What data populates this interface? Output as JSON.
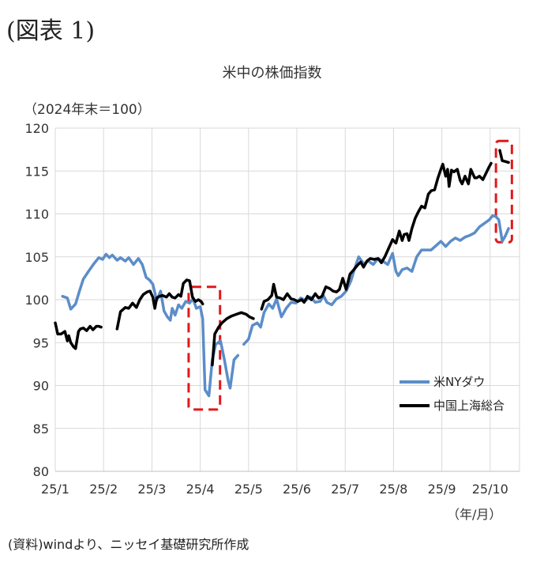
{
  "figure_label": "(図表 1)",
  "source_note": "(資料)windより、ニッセイ基礎研究所作成",
  "colors": {
    "us": "#5b8dc9",
    "cn": "#000000",
    "highlight": "#e0191b",
    "grid": "#d9d9d9"
  },
  "chart_data": {
    "type": "line",
    "title": "米中の株価指数",
    "ylabel": "（2024年末＝100）",
    "xlabel": "（年/月）",
    "ylim": [
      80,
      120
    ],
    "yticks": [
      80,
      85,
      90,
      95,
      100,
      105,
      110,
      115,
      120
    ],
    "xlim": [
      0,
      9.45
    ],
    "xtick_labels": [
      "25/1",
      "25/2",
      "25/3",
      "25/4",
      "25/5",
      "25/6",
      "25/7",
      "25/8",
      "25/9",
      "25/10"
    ],
    "grid": true,
    "legend": "right",
    "series": [
      {
        "name": "米NYダウ",
        "points": [
          [
            0.02,
            100.3
          ],
          [
            0.15,
            100.4
          ],
          [
            0.25,
            100.2
          ],
          [
            0.32,
            98.9
          ],
          [
            0.42,
            99.5
          ],
          [
            0.5,
            101.0
          ],
          [
            0.58,
            102.4
          ],
          [
            0.7,
            103.4
          ],
          [
            0.8,
            104.2
          ],
          [
            0.9,
            104.9
          ],
          [
            0.98,
            104.7
          ],
          [
            1.05,
            105.3
          ],
          [
            1.12,
            104.9
          ],
          [
            1.18,
            105.2
          ],
          [
            1.28,
            104.6
          ],
          [
            1.35,
            104.9
          ],
          [
            1.45,
            104.5
          ],
          [
            1.52,
            104.9
          ],
          [
            1.62,
            104.1
          ],
          [
            1.72,
            104.8
          ],
          [
            1.8,
            104.1
          ],
          [
            1.88,
            102.6
          ],
          [
            1.95,
            102.3
          ],
          [
            2.02,
            101.8
          ],
          [
            2.1,
            99.9
          ],
          [
            2.18,
            101.0
          ],
          [
            2.25,
            98.7
          ],
          [
            2.32,
            98.0
          ],
          [
            2.38,
            97.6
          ],
          [
            2.42,
            99.0
          ],
          [
            2.48,
            98.2
          ],
          [
            2.55,
            99.4
          ],
          [
            2.62,
            99.0
          ],
          [
            2.7,
            99.8
          ],
          [
            2.78,
            99.6
          ],
          [
            2.85,
            100.1
          ],
          [
            2.92,
            99.0
          ],
          [
            3.0,
            99.2
          ],
          [
            3.05,
            97.8
          ],
          [
            3.1,
            89.5
          ],
          [
            3.18,
            88.8
          ],
          [
            3.25,
            93.0
          ],
          [
            3.32,
            94.8
          ],
          [
            3.42,
            95.2
          ],
          [
            3.5,
            93.0
          ],
          [
            3.58,
            90.5
          ],
          [
            3.62,
            89.7
          ],
          [
            3.7,
            93.0
          ],
          [
            3.78,
            93.5
          ],
          [
            3.9,
            94.8
          ],
          [
            4.0,
            95.4
          ],
          [
            4.08,
            97.0
          ],
          [
            4.18,
            97.3
          ],
          [
            4.25,
            96.8
          ],
          [
            4.32,
            98.5
          ],
          [
            4.42,
            99.5
          ],
          [
            4.5,
            99.0
          ],
          [
            4.58,
            100.1
          ],
          [
            4.68,
            98.0
          ],
          [
            4.78,
            99.0
          ],
          [
            4.88,
            99.7
          ],
          [
            4.98,
            99.6
          ],
          [
            5.08,
            100.2
          ],
          [
            5.18,
            99.9
          ],
          [
            5.28,
            100.3
          ],
          [
            5.38,
            99.7
          ],
          [
            5.48,
            99.8
          ],
          [
            5.55,
            100.5
          ],
          [
            5.62,
            99.7
          ],
          [
            5.72,
            99.4
          ],
          [
            5.82,
            100.1
          ],
          [
            5.92,
            100.4
          ],
          [
            6.02,
            101.0
          ],
          [
            6.12,
            102.2
          ],
          [
            6.2,
            103.7
          ],
          [
            6.28,
            105.0
          ],
          [
            6.38,
            104.2
          ],
          [
            6.48,
            104.5
          ],
          [
            6.58,
            104.1
          ],
          [
            6.68,
            104.8
          ],
          [
            6.78,
            104.5
          ],
          [
            6.88,
            104.1
          ],
          [
            6.98,
            105.4
          ],
          [
            7.05,
            103.3
          ],
          [
            7.1,
            102.8
          ],
          [
            7.18,
            103.5
          ],
          [
            7.28,
            103.7
          ],
          [
            7.38,
            103.3
          ],
          [
            7.48,
            105.0
          ],
          [
            7.58,
            105.8
          ],
          [
            7.68,
            105.8
          ],
          [
            7.78,
            105.8
          ],
          [
            7.88,
            106.3
          ],
          [
            7.98,
            106.8
          ],
          [
            8.08,
            106.2
          ],
          [
            8.18,
            106.8
          ],
          [
            8.28,
            107.2
          ],
          [
            8.38,
            106.9
          ],
          [
            8.48,
            107.3
          ],
          [
            8.58,
            107.5
          ],
          [
            8.68,
            107.8
          ],
          [
            8.78,
            108.5
          ],
          [
            8.88,
            108.9
          ],
          [
            8.98,
            109.3
          ],
          [
            9.05,
            109.8
          ],
          [
            9.12,
            109.7
          ],
          [
            9.18,
            109.3
          ],
          [
            9.25,
            106.8
          ],
          [
            9.32,
            107.5
          ],
          [
            9.38,
            108.3
          ]
        ]
      },
      {
        "name": "中国上海総合",
        "points": [
          [
            0.0,
            97.3
          ],
          [
            0.05,
            96.0
          ],
          [
            0.12,
            96.0
          ],
          [
            0.2,
            96.3
          ],
          [
            0.25,
            95.2
          ],
          [
            0.28,
            95.8
          ],
          [
            0.32,
            95.0
          ],
          [
            0.38,
            94.5
          ],
          [
            0.42,
            94.3
          ],
          [
            0.48,
            96.3
          ],
          [
            0.52,
            96.6
          ],
          [
            0.58,
            96.7
          ],
          [
            0.65,
            96.4
          ],
          [
            0.72,
            96.9
          ],
          [
            0.78,
            96.5
          ],
          [
            0.85,
            96.9
          ],
          [
            0.9,
            96.9
          ],
          [
            0.95,
            96.8
          ],
          [
            1.28,
            96.6
          ],
          [
            1.35,
            98.6
          ],
          [
            1.45,
            99.1
          ],
          [
            1.52,
            99.0
          ],
          [
            1.6,
            99.6
          ],
          [
            1.68,
            99.1
          ],
          [
            1.75,
            100.0
          ],
          [
            1.82,
            100.6
          ],
          [
            1.9,
            100.9
          ],
          [
            1.96,
            101.0
          ],
          [
            2.02,
            100.3
          ],
          [
            2.06,
            99.0
          ],
          [
            2.1,
            100.2
          ],
          [
            2.16,
            100.4
          ],
          [
            2.22,
            100.5
          ],
          [
            2.3,
            100.3
          ],
          [
            2.36,
            100.7
          ],
          [
            2.42,
            100.3
          ],
          [
            2.48,
            100.2
          ],
          [
            2.55,
            100.6
          ],
          [
            2.6,
            100.4
          ],
          [
            2.65,
            101.9
          ],
          [
            2.72,
            102.3
          ],
          [
            2.78,
            102.2
          ],
          [
            2.84,
            100.3
          ],
          [
            2.9,
            99.8
          ],
          [
            2.96,
            100.0
          ],
          [
            3.02,
            99.8
          ],
          [
            3.05,
            99.5
          ],
          [
            3.25,
            92.4
          ],
          [
            3.3,
            96.0
          ],
          [
            3.38,
            96.8
          ],
          [
            3.45,
            97.3
          ],
          [
            3.55,
            97.8
          ],
          [
            3.65,
            98.1
          ],
          [
            3.75,
            98.3
          ],
          [
            3.85,
            98.5
          ],
          [
            3.95,
            98.3
          ],
          [
            4.02,
            98.0
          ],
          [
            4.1,
            97.8
          ],
          [
            4.27,
            98.9
          ],
          [
            4.32,
            99.8
          ],
          [
            4.4,
            100.0
          ],
          [
            4.48,
            100.5
          ],
          [
            4.52,
            101.8
          ],
          [
            4.58,
            100.3
          ],
          [
            4.65,
            100.2
          ],
          [
            4.72,
            100.0
          ],
          [
            4.8,
            100.7
          ],
          [
            4.88,
            100.1
          ],
          [
            4.95,
            100.0
          ],
          [
            5.02,
            99.8
          ],
          [
            5.1,
            100.0
          ],
          [
            5.15,
            99.7
          ],
          [
            5.22,
            100.4
          ],
          [
            5.3,
            100.0
          ],
          [
            5.38,
            100.7
          ],
          [
            5.45,
            100.2
          ],
          [
            5.52,
            100.4
          ],
          [
            5.6,
            101.5
          ],
          [
            5.68,
            101.3
          ],
          [
            5.75,
            101.0
          ],
          [
            5.82,
            100.9
          ],
          [
            5.88,
            101.2
          ],
          [
            5.95,
            102.5
          ],
          [
            6.02,
            101.2
          ],
          [
            6.1,
            103.0
          ],
          [
            6.18,
            103.5
          ],
          [
            6.25,
            104.0
          ],
          [
            6.32,
            104.4
          ],
          [
            6.38,
            103.8
          ],
          [
            6.45,
            104.5
          ],
          [
            6.52,
            104.8
          ],
          [
            6.6,
            104.7
          ],
          [
            6.68,
            104.8
          ],
          [
            6.75,
            104.3
          ],
          [
            6.82,
            105.0
          ],
          [
            6.9,
            106.0
          ],
          [
            6.98,
            107.0
          ],
          [
            7.05,
            106.6
          ],
          [
            7.12,
            108.0
          ],
          [
            7.18,
            106.9
          ],
          [
            7.22,
            107.6
          ],
          [
            7.28,
            107.7
          ],
          [
            7.32,
            106.9
          ],
          [
            7.38,
            108.3
          ],
          [
            7.45,
            109.5
          ],
          [
            7.52,
            110.3
          ],
          [
            7.58,
            110.9
          ],
          [
            7.65,
            110.7
          ],
          [
            7.72,
            112.3
          ],
          [
            7.78,
            112.7
          ],
          [
            7.85,
            112.8
          ],
          [
            7.92,
            114.2
          ],
          [
            7.98,
            115.2
          ],
          [
            8.02,
            115.8
          ],
          [
            8.08,
            114.4
          ],
          [
            8.12,
            115.2
          ],
          [
            8.15,
            113.2
          ],
          [
            8.2,
            115.1
          ],
          [
            8.25,
            114.9
          ],
          [
            8.32,
            115.2
          ],
          [
            8.38,
            113.9
          ],
          [
            8.42,
            113.5
          ],
          [
            8.48,
            114.4
          ],
          [
            8.55,
            113.5
          ],
          [
            8.6,
            115.2
          ],
          [
            8.68,
            114.2
          ],
          [
            8.72,
            114.2
          ],
          [
            8.78,
            114.4
          ],
          [
            8.85,
            114.0
          ],
          [
            8.92,
            114.8
          ],
          [
            8.98,
            115.5
          ],
          [
            9.02,
            115.9
          ],
          [
            9.2,
            117.4
          ],
          [
            9.25,
            116.2
          ],
          [
            9.32,
            116.1
          ],
          [
            9.38,
            116.0
          ]
        ]
      }
    ]
  }
}
